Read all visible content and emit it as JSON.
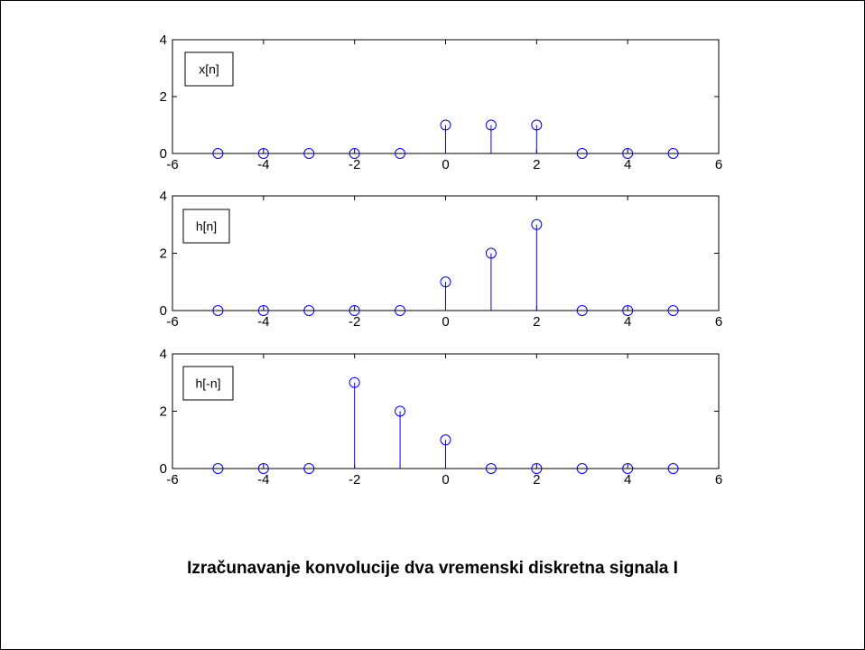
{
  "caption": "Izračunavanje konvolucije dva vremenski diskretna signala I",
  "colors": {
    "stem": "#0000ff",
    "axis": "#000000",
    "background": "#ffffff"
  },
  "chart_data": [
    {
      "type": "scatter",
      "style": "stem",
      "legend": "x[n]",
      "legend_position": "top-left",
      "x": [
        -5,
        -4,
        -3,
        -2,
        -1,
        0,
        1,
        2,
        3,
        4,
        5
      ],
      "y": [
        0,
        0,
        0,
        0,
        0,
        1,
        1,
        1,
        0,
        0,
        0
      ],
      "xlim": [
        -6,
        6
      ],
      "ylim": [
        0,
        4
      ],
      "xticks": [
        -6,
        -4,
        -2,
        0,
        2,
        4,
        6
      ],
      "yticks": [
        0,
        2,
        4
      ],
      "grid": false
    },
    {
      "type": "scatter",
      "style": "stem",
      "legend": "h[n]",
      "legend_position": "top-left",
      "x": [
        -5,
        -4,
        -3,
        -2,
        -1,
        0,
        1,
        2,
        3,
        4,
        5
      ],
      "y": [
        0,
        0,
        0,
        0,
        0,
        1,
        2,
        3,
        0,
        0,
        0
      ],
      "xlim": [
        -6,
        6
      ],
      "ylim": [
        0,
        4
      ],
      "xticks": [
        -6,
        -4,
        -2,
        0,
        2,
        4,
        6
      ],
      "yticks": [
        0,
        2,
        4
      ],
      "grid": false
    },
    {
      "type": "scatter",
      "style": "stem",
      "legend": "h[-n]",
      "legend_position": "top-left",
      "x": [
        -5,
        -4,
        -3,
        -2,
        -1,
        0,
        1,
        2,
        3,
        4,
        5
      ],
      "y": [
        0,
        0,
        0,
        3,
        2,
        1,
        0,
        0,
        0,
        0,
        0
      ],
      "xlim": [
        -6,
        6
      ],
      "ylim": [
        0,
        4
      ],
      "xticks": [
        -6,
        -4,
        -2,
        0,
        2,
        4,
        6
      ],
      "yticks": [
        0,
        2,
        4
      ],
      "grid": false
    }
  ]
}
